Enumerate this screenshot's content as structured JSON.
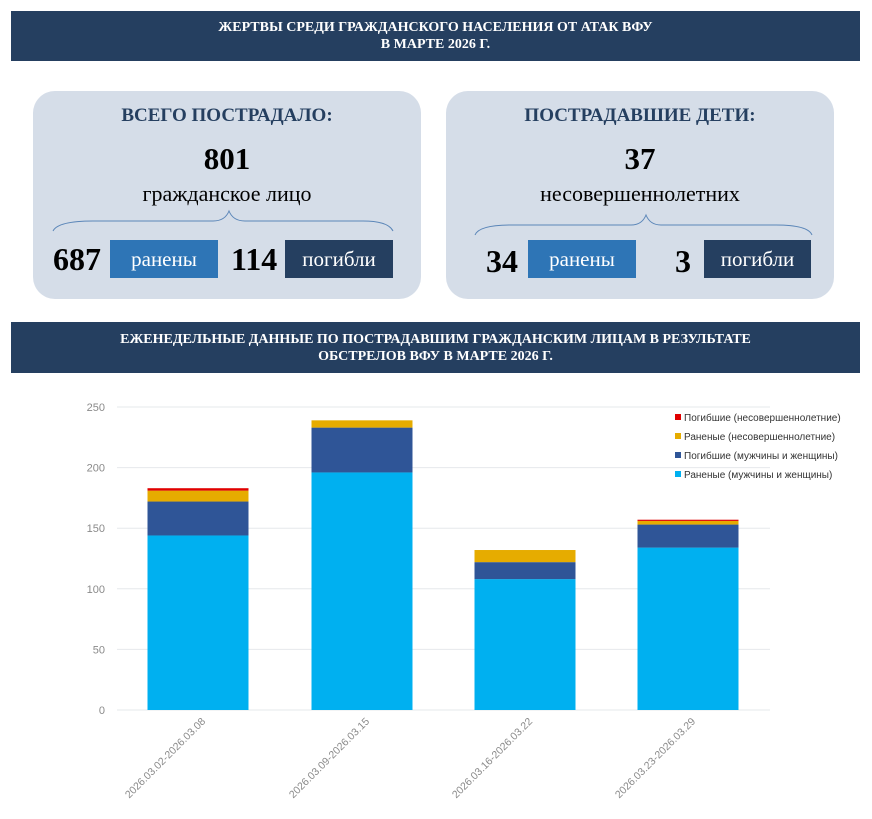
{
  "header": {
    "line1": "ЖЕРТВЫ СРЕДИ ГРАЖДАНСКОГО НАСЕЛЕНИЯ ОТ АТАК ВФУ",
    "line2": "В МАРТЕ 2026 Г."
  },
  "total_card": {
    "title": "ВСЕГО ПОСТРАДАЛО:",
    "total": "801",
    "unit": "гражданское лицо",
    "injured": "687",
    "injured_label": "ранены",
    "killed": "114",
    "killed_label": "погибли"
  },
  "children_card": {
    "title": "ПОСТРАДАВШИЕ ДЕТИ:",
    "total": "37",
    "unit": "несовершеннолетних",
    "injured": "34",
    "injured_label": "ранены",
    "killed": "3",
    "killed_label": "погибли"
  },
  "section": {
    "line1": "ЕЖЕНЕДЕЛЬНЫЕ ДАННЫЕ ПО ПОСТРАДАВШИМ ГРАЖДАНСКИМ ЛИЦАМ В РЕЗУЛЬТАТЕ",
    "line2": "ОБСТРЕЛОВ ВФУ В МАРТЕ 2026 Г."
  },
  "colors": {
    "banner": "#253f60",
    "card": "#d5dde8",
    "injured": "#2e75b6",
    "killed": "#253f60"
  },
  "chart_data": {
    "type": "bar",
    "stacked": true,
    "categories": [
      "2026.03.02-2026.03.08",
      "2026.03.09-2026.03.15",
      "2026.03.16-2026.03.22",
      "2026.03.23-2026.03.29"
    ],
    "series": [
      {
        "name": "Раненые (мужчины и женщины)",
        "color": "#00b0f0",
        "values": [
          144,
          196,
          108,
          134
        ]
      },
      {
        "name": "Погибшие (мужчины и женщины)",
        "color": "#2f5597",
        "values": [
          28,
          37,
          14,
          19
        ]
      },
      {
        "name": "Раненые (несовершеннолетние)",
        "color": "#e6ac00",
        "values": [
          9,
          6,
          10,
          3
        ]
      },
      {
        "name": "Погибшие (несовершеннолетние)",
        "color": "#e00000",
        "values": [
          2,
          0,
          0,
          1
        ]
      }
    ],
    "yticks": [
      0,
      50,
      100,
      150,
      200,
      250
    ],
    "ylim": [
      0,
      250
    ],
    "grid": true,
    "legend_position": "top-right"
  }
}
